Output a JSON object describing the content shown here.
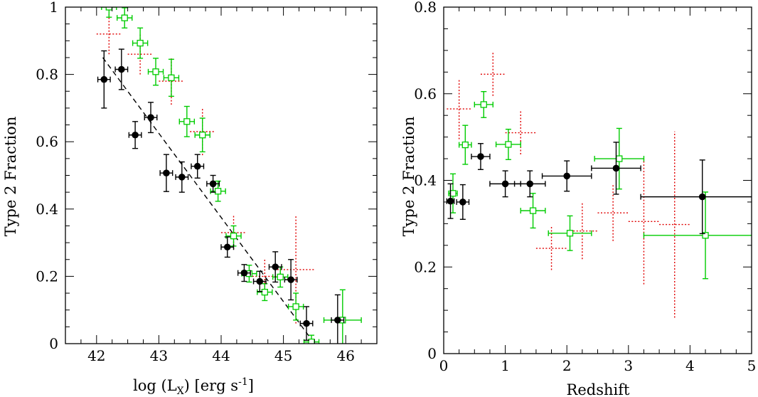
{
  "chart_data": [
    {
      "type": "scatter",
      "xlabel": "log (L_X) [erg s^-1]",
      "xlabel_main": "log (L",
      "xlabel_sub": "X",
      "xlabel_rest": ") [erg s",
      "xlabel_sup": "-1",
      "xlabel_end": "]",
      "ylabel": "Type 2 Fraction",
      "xlim": [
        41.5,
        46.5
      ],
      "ylim": [
        0,
        1
      ],
      "xticks": [
        42,
        43,
        44,
        45,
        46
      ],
      "xtick_labels": [
        "42",
        "43",
        "44",
        "45",
        "46"
      ],
      "yticks": [
        0,
        0.2,
        0.4,
        0.6,
        0.8,
        1
      ],
      "ytick_labels": [
        "0",
        "0.2",
        "0.4",
        "0.6",
        "0.8",
        "1"
      ],
      "series": [
        {
          "style": "black-filled-circle",
          "color": "#000000",
          "points": [
            {
              "x": 42.12,
              "y": 0.785,
              "xerr": 0.1,
              "yerr": 0.085
            },
            {
              "x": 42.4,
              "y": 0.815,
              "xerr": 0.1,
              "yerr": 0.06
            },
            {
              "x": 42.62,
              "y": 0.62,
              "xerr": 0.1,
              "yerr": 0.04
            },
            {
              "x": 42.87,
              "y": 0.672,
              "xerr": 0.1,
              "yerr": 0.045
            },
            {
              "x": 43.12,
              "y": 0.507,
              "xerr": 0.1,
              "yerr": 0.055
            },
            {
              "x": 43.37,
              "y": 0.495,
              "xerr": 0.1,
              "yerr": 0.045
            },
            {
              "x": 43.62,
              "y": 0.527,
              "xerr": 0.1,
              "yerr": 0.035
            },
            {
              "x": 43.87,
              "y": 0.475,
              "xerr": 0.1,
              "yerr": 0.025
            },
            {
              "x": 44.1,
              "y": 0.287,
              "xerr": 0.1,
              "yerr": 0.03
            },
            {
              "x": 44.37,
              "y": 0.21,
              "xerr": 0.1,
              "yerr": 0.025
            },
            {
              "x": 44.62,
              "y": 0.185,
              "xerr": 0.1,
              "yerr": 0.03
            },
            {
              "x": 44.87,
              "y": 0.228,
              "xerr": 0.1,
              "yerr": 0.045
            },
            {
              "x": 45.12,
              "y": 0.19,
              "xerr": 0.1,
              "yerr": 0.06
            },
            {
              "x": 45.37,
              "y": 0.06,
              "xerr": 0.1,
              "yerr": 0.05
            },
            {
              "x": 45.87,
              "y": 0.07,
              "xerr": 0.1,
              "yerr": 0.075
            }
          ]
        },
        {
          "style": "green-open-square",
          "color": "#00cc00",
          "points": [
            {
              "x": 42.2,
              "y": 1.0,
              "xerr": 0.12,
              "yerr": 0.03
            },
            {
              "x": 42.45,
              "y": 0.968,
              "xerr": 0.12,
              "yerr": 0.03
            },
            {
              "x": 42.7,
              "y": 0.893,
              "xerr": 0.12,
              "yerr": 0.045
            },
            {
              "x": 42.95,
              "y": 0.808,
              "xerr": 0.12,
              "yerr": 0.04
            },
            {
              "x": 43.2,
              "y": 0.79,
              "xerr": 0.12,
              "yerr": 0.055
            },
            {
              "x": 43.45,
              "y": 0.66,
              "xerr": 0.12,
              "yerr": 0.045
            },
            {
              "x": 43.7,
              "y": 0.62,
              "xerr": 0.12,
              "yerr": 0.05
            },
            {
              "x": 43.95,
              "y": 0.453,
              "xerr": 0.12,
              "yerr": 0.03
            },
            {
              "x": 44.2,
              "y": 0.32,
              "xerr": 0.12,
              "yerr": 0.03
            },
            {
              "x": 44.45,
              "y": 0.208,
              "xerr": 0.12,
              "yerr": 0.025
            },
            {
              "x": 44.7,
              "y": 0.153,
              "xerr": 0.12,
              "yerr": 0.025
            },
            {
              "x": 44.95,
              "y": 0.198,
              "xerr": 0.12,
              "yerr": 0.03
            },
            {
              "x": 45.2,
              "y": 0.11,
              "xerr": 0.12,
              "yerr": 0.04
            },
            {
              "x": 45.45,
              "y": 0.005,
              "xerr": 0.12,
              "yerr": 0.02
            },
            {
              "x": 45.95,
              "y": 0.07,
              "xerr": 0.3,
              "yerr": 0.09
            }
          ]
        },
        {
          "style": "red-dotted-cross",
          "color": "#e00000",
          "points": [
            {
              "x": 42.2,
              "y": 0.92,
              "xerr": 0.2,
              "yerr": 0.06
            },
            {
              "x": 42.7,
              "y": 0.86,
              "xerr": 0.2,
              "yerr": 0.06
            },
            {
              "x": 43.2,
              "y": 0.78,
              "xerr": 0.2,
              "yerr": 0.07
            },
            {
              "x": 43.7,
              "y": 0.63,
              "xerr": 0.2,
              "yerr": 0.07
            },
            {
              "x": 44.2,
              "y": 0.33,
              "xerr": 0.2,
              "yerr": 0.05
            },
            {
              "x": 44.7,
              "y": 0.2,
              "xerr": 0.2,
              "yerr": 0.05
            },
            {
              "x": 45.2,
              "y": 0.22,
              "xerr": 0.3,
              "yerr": 0.16
            }
          ]
        }
      ],
      "fit_line": {
        "style": "dashed",
        "x": [
          42.1,
          45.5
        ],
        "y": [
          0.85,
          0.0
        ]
      }
    },
    {
      "type": "scatter",
      "xlabel": "Redshift",
      "ylabel": "Type 2 Fraction",
      "xlim": [
        0,
        5
      ],
      "ylim": [
        0,
        0.8
      ],
      "xticks": [
        0,
        1,
        2,
        3,
        4,
        5
      ],
      "xtick_labels": [
        "0",
        "1",
        "2",
        "3",
        "4",
        "5"
      ],
      "yticks": [
        0,
        0.2,
        0.4,
        0.6,
        0.8
      ],
      "ytick_labels": [
        "0",
        "0.2",
        "0.4",
        "0.6",
        "0.8"
      ],
      "series": [
        {
          "style": "black-filled-circle",
          "color": "#000000",
          "points": [
            {
              "x": 0.11,
              "y": 0.352,
              "xerr": 0.06,
              "yerr": 0.04
            },
            {
              "x": 0.31,
              "y": 0.35,
              "xerr": 0.1,
              "yerr": 0.04
            },
            {
              "x": 0.6,
              "y": 0.455,
              "xerr": 0.15,
              "yerr": 0.03
            },
            {
              "x": 1.0,
              "y": 0.392,
              "xerr": 0.25,
              "yerr": 0.03
            },
            {
              "x": 1.4,
              "y": 0.392,
              "xerr": 0.25,
              "yerr": 0.03
            },
            {
              "x": 2.0,
              "y": 0.41,
              "xerr": 0.4,
              "yerr": 0.035
            },
            {
              "x": 2.8,
              "y": 0.428,
              "xerr": 0.4,
              "yerr": 0.06
            },
            {
              "x": 4.2,
              "y": 0.362,
              "xerr": 1.0,
              "yerr": 0.085
            }
          ]
        },
        {
          "style": "green-open-square",
          "color": "#00cc00",
          "points": [
            {
              "x": 0.15,
              "y": 0.37,
              "xerr": 0.07,
              "yerr": 0.045
            },
            {
              "x": 0.35,
              "y": 0.482,
              "xerr": 0.1,
              "yerr": 0.045
            },
            {
              "x": 0.65,
              "y": 0.575,
              "xerr": 0.15,
              "yerr": 0.03
            },
            {
              "x": 1.05,
              "y": 0.483,
              "xerr": 0.2,
              "yerr": 0.035
            },
            {
              "x": 1.45,
              "y": 0.33,
              "xerr": 0.2,
              "yerr": 0.04
            },
            {
              "x": 2.05,
              "y": 0.278,
              "xerr": 0.35,
              "yerr": 0.04
            },
            {
              "x": 2.85,
              "y": 0.45,
              "xerr": 0.4,
              "yerr": 0.07
            },
            {
              "x": 4.25,
              "y": 0.273,
              "xerr": 1.0,
              "yerr": 0.1
            }
          ]
        },
        {
          "style": "red-dotted-cross",
          "color": "#e00000",
          "points": [
            {
              "x": 0.25,
              "y": 0.565,
              "xerr": 0.2,
              "yerr": 0.07
            },
            {
              "x": 0.8,
              "y": 0.645,
              "xerr": 0.2,
              "yerr": 0.05
            },
            {
              "x": 1.25,
              "y": 0.51,
              "xerr": 0.25,
              "yerr": 0.05
            },
            {
              "x": 1.75,
              "y": 0.243,
              "xerr": 0.25,
              "yerr": 0.05
            },
            {
              "x": 2.25,
              "y": 0.283,
              "xerr": 0.25,
              "yerr": 0.065
            },
            {
              "x": 2.75,
              "y": 0.325,
              "xerr": 0.25,
              "yerr": 0.065
            },
            {
              "x": 3.25,
              "y": 0.305,
              "xerr": 0.25,
              "yerr": 0.145
            },
            {
              "x": 3.75,
              "y": 0.298,
              "xerr": 0.25,
              "yerr": 0.215
            }
          ]
        }
      ]
    }
  ]
}
